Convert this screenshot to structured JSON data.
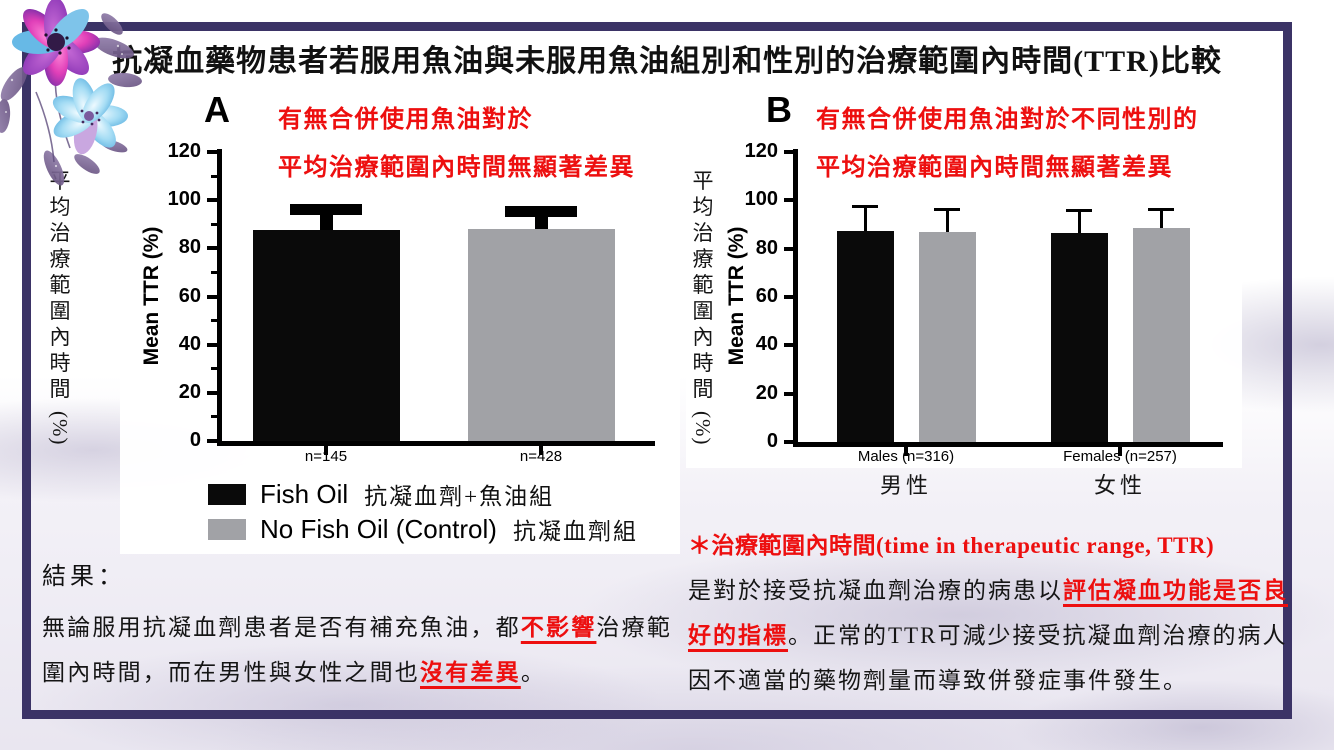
{
  "page": {
    "title": "抗凝血藥物患者若服用魚油與未服用魚油組別和性別的治療範圍內時間(TTR)比較"
  },
  "colors": {
    "frame_border": "#3b3366",
    "accent_red": "#ed0f0f",
    "bar_black": "#0a0a0a",
    "bar_gray": "#a1a2a6"
  },
  "icons": {
    "flower": "watercolor-flower-bouquet"
  },
  "chart_data": [
    {
      "id": "A",
      "type": "bar",
      "panel_label": "A",
      "annotation_lines": [
        "有無合併使用魚油對於",
        "平均治療範圍內時間無顯著差異"
      ],
      "y_axis_label_en": "Mean TTR (%)",
      "y_axis_label_zh": "平均治療範圍內時間",
      "y_axis_label_zh_suffix": "(%)",
      "ylim": [
        0,
        120
      ],
      "yticks": [
        0,
        20,
        40,
        60,
        80,
        100,
        120
      ],
      "grid": false,
      "groups": [
        {
          "label": "n=145",
          "bars": [
            {
              "series": "Fish Oil",
              "value": 87.5,
              "sd_top": 98.5,
              "color": "#0a0a0a"
            }
          ]
        },
        {
          "label": "n=428",
          "bars": [
            {
              "series": "No Fish Oil (Control)",
              "value": 88,
              "sd_top": 97.5,
              "color": "#a1a2a6"
            }
          ]
        }
      ]
    },
    {
      "id": "B",
      "type": "bar",
      "panel_label": "B",
      "annotation_lines": [
        "有無合併使用魚油對於不同性別的",
        "平均治療範圍內時間無顯著差異"
      ],
      "y_axis_label_en": "Mean TTR (%)",
      "y_axis_label_zh": "平均治療範圍內時間",
      "y_axis_label_zh_suffix": "(%)",
      "ylim": [
        0,
        120
      ],
      "yticks": [
        0,
        20,
        40,
        60,
        80,
        100,
        120
      ],
      "grid": false,
      "groups": [
        {
          "label": "Males (n=316)",
          "label_zh": "男性",
          "bars": [
            {
              "series": "Fish Oil",
              "value": 87.5,
              "sd_top": 98,
              "color": "#0a0a0a"
            },
            {
              "series": "No Fish Oil (Control)",
              "value": 87,
              "sd_top": 97,
              "color": "#a1a2a6"
            }
          ]
        },
        {
          "label": "Females (n=257)",
          "label_zh": "女性",
          "bars": [
            {
              "series": "Fish Oil",
              "value": 86.5,
              "sd_top": 96.5,
              "color": "#0a0a0a"
            },
            {
              "series": "No Fish Oil (Control)",
              "value": 88.5,
              "sd_top": 97,
              "color": "#a1a2a6"
            }
          ]
        }
      ]
    }
  ],
  "legend": {
    "items": [
      {
        "label_en": "Fish Oil",
        "label_zh": "抗凝血劑+魚油組",
        "color": "#0a0a0a"
      },
      {
        "label_en": "No Fish Oil (Control)",
        "label_zh": "抗凝血劑組",
        "color": "#a1a2a6"
      }
    ]
  },
  "result_block": {
    "heading": "結果：",
    "segments": [
      {
        "text": "無論服用抗凝血劑患者是否有補充魚油，都",
        "style": "normal"
      },
      {
        "text": "不影響",
        "style": "red-underline"
      },
      {
        "text": "治療範圍內時間，而在男性與女性之間也",
        "style": "normal"
      },
      {
        "text": "沒有差異",
        "style": "red-underline"
      },
      {
        "text": "。",
        "style": "normal"
      }
    ]
  },
  "note_block": {
    "title": "＊治療範圍內時間(time in therapeutic range, TTR)",
    "segments": [
      {
        "text": "是對於接受抗凝血劑治療的病患以",
        "style": "normal"
      },
      {
        "text": "評估凝血功能是否良好的指標",
        "style": "red-underline"
      },
      {
        "text": "。正常的TTR可減少接受抗凝血劑治療的病人因不適當的藥物劑量而導致併發症事件發生。",
        "style": "normal"
      }
    ]
  }
}
